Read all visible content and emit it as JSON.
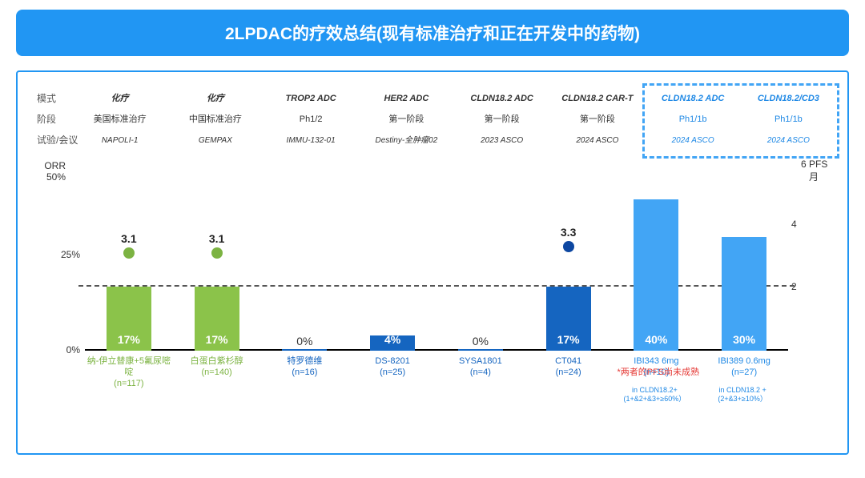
{
  "title": "2LPDAC的疗效总结(现有标准治疗和正在开发中的药物)",
  "rowHeaders": {
    "r1": "模式",
    "r2": "阶段",
    "r3": "试验/会议"
  },
  "columns": [
    {
      "mode": "化疗",
      "stage": "美国标准治疗",
      "trial": "NAPOLI-1",
      "highlight": false
    },
    {
      "mode": "化疗",
      "stage": "中国标准治疗",
      "trial": "GEMPAX",
      "highlight": false
    },
    {
      "mode": "TROP2 ADC",
      "stage": "Ph1/2",
      "trial": "IMMU-132-01",
      "highlight": false
    },
    {
      "mode": "HER2 ADC",
      "stage": "第一阶段",
      "trial": "Destiny-全肿瘤02",
      "highlight": false
    },
    {
      "mode": "CLDN18.2 ADC",
      "stage": "第一阶段",
      "trial": "2023 ASCO",
      "highlight": false
    },
    {
      "mode": "CLDN18.2 CAR-T",
      "stage": "第一阶段",
      "trial": "2024 ASCO",
      "highlight": false
    },
    {
      "mode": "CLDN18.2 ADC",
      "stage": "Ph1/1b",
      "trial": "2024 ASCO",
      "highlight": true
    },
    {
      "mode": "CLDN18.2/CD3",
      "stage": "Ph1/1b",
      "trial": "2024 ASCO",
      "highlight": true
    }
  ],
  "chart": {
    "type": "bar-with-secondary-scatter",
    "leftAxis": {
      "name": "ORR",
      "unit": "%",
      "min": 0,
      "max": 50,
      "ticks": [
        0,
        25,
        50
      ]
    },
    "rightAxis": {
      "name": "PFS",
      "unit": "月",
      "min": 0,
      "max": 6,
      "ticks": [
        2,
        4,
        6
      ]
    },
    "refLinePct": 17,
    "barWidthPx": 56,
    "colors": {
      "green": "#8bc34a",
      "darkblue": "#1565c0",
      "lightblue": "#42a5f5",
      "dotGreen": "#7cb342",
      "dotBlue": "#0d47a1",
      "baseline": "#000000",
      "dash": "#555555"
    },
    "series": [
      {
        "orr": 17,
        "color": "green",
        "pfs": 3.1,
        "dotColor": "dotGreen",
        "label1": "纳-伊立替康+5氟尿嘧啶",
        "label2": "(n=117)",
        "labColor": "#7cb342"
      },
      {
        "orr": 17,
        "color": "green",
        "pfs": 3.1,
        "dotColor": "dotGreen",
        "label1": "白蛋白紫杉醇",
        "label2": "(n=140)",
        "labColor": "#7cb342"
      },
      {
        "orr": 0,
        "color": "darkblue",
        "pfs": null,
        "label1": "特罗德维",
        "label2": "(n=16)",
        "labColor": "#1565c0"
      },
      {
        "orr": 4,
        "color": "darkblue",
        "pfs": null,
        "label1": "DS-8201",
        "label2": "(n=25)",
        "labColor": "#1565c0"
      },
      {
        "orr": 0,
        "color": "darkblue",
        "pfs": null,
        "label1": "SYSA1801",
        "label2": "(n=4)",
        "labColor": "#1565c0"
      },
      {
        "orr": 17,
        "color": "darkblue",
        "pfs": 3.3,
        "dotColor": "dotBlue",
        "label1": "CT041",
        "label2": "(n=24)",
        "labColor": "#1565c0"
      },
      {
        "orr": 40,
        "color": "lightblue",
        "pfs": null,
        "label1": "IBI343 6mg",
        "label2": "(n=10)",
        "labColor": "#1e88e5"
      },
      {
        "orr": 30,
        "color": "lightblue",
        "pfs": null,
        "label1": "IBI389 0.6mg",
        "label2": "(n=27)",
        "labColor": "#1e88e5"
      }
    ],
    "redNote": "*两者的PFS尚未成熟",
    "subnotes": [
      "in CLDN18.2+\n(1+&2+&3+≥60%）",
      "in CLDN18.2 +\n(2+&3+≥10%）"
    ]
  }
}
